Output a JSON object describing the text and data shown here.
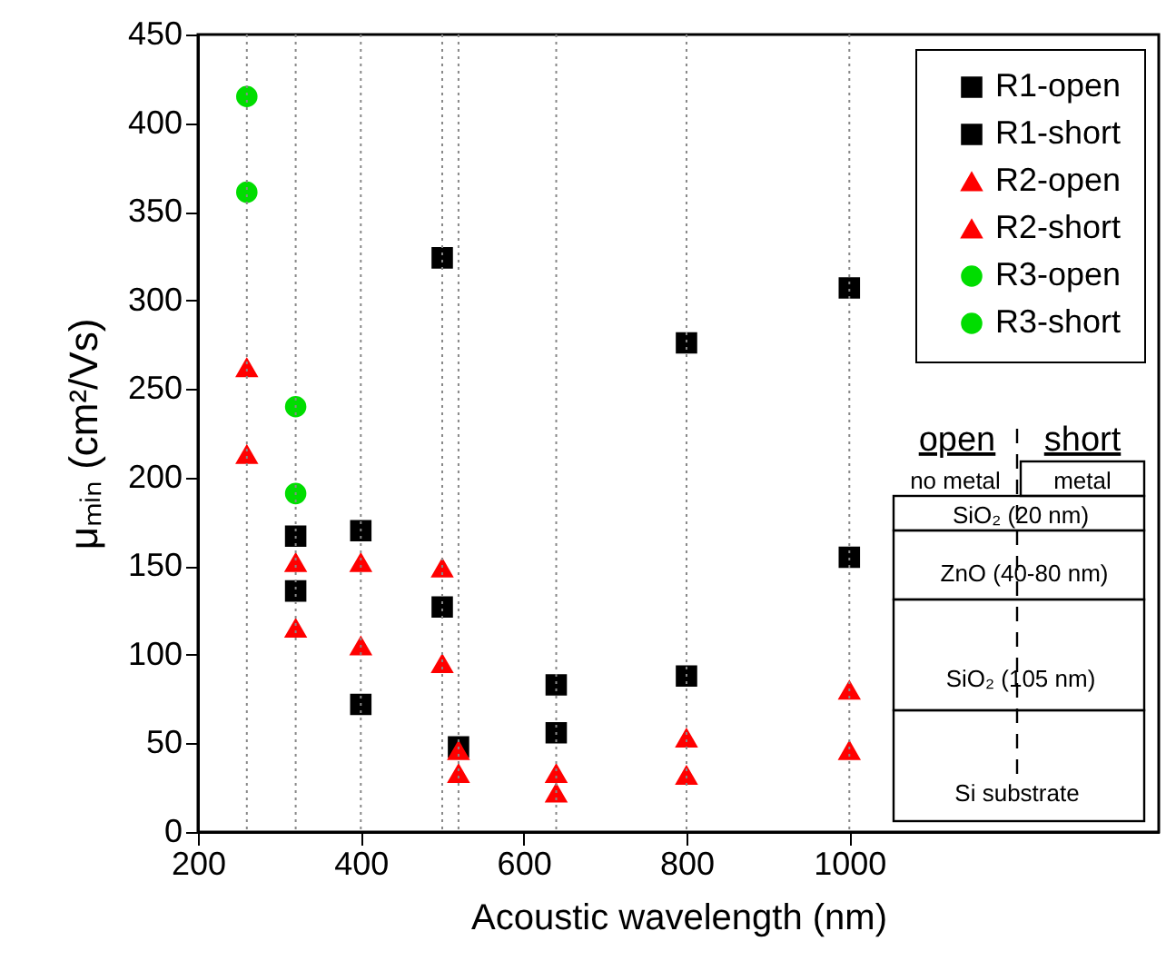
{
  "chart_data": {
    "type": "scatter",
    "xlabel": "Acoustic wavelength (nm)",
    "ylabel": "μₘᵢₙ (cm²/Vs)",
    "x": [
      260,
      320,
      400,
      500,
      520,
      640,
      800,
      1000
    ],
    "series": [
      {
        "name": "R1-open",
        "color": "#000000",
        "marker": "square",
        "values": [
          null,
          136,
          72,
          127,
          48,
          56,
          88,
          155
        ]
      },
      {
        "name": "R1-short",
        "color": "#000000",
        "marker": "square",
        "values": [
          null,
          167,
          170,
          324,
          null,
          83,
          276,
          307
        ]
      },
      {
        "name": "R2-open",
        "color": "#ff0000",
        "marker": "triangle",
        "values": [
          262,
          152,
          152,
          149,
          46,
          33,
          53,
          80
        ]
      },
      {
        "name": "R2-short",
        "color": "#ff0000",
        "marker": "triangle",
        "values": [
          213,
          115,
          105,
          95,
          33,
          22,
          32,
          46
        ]
      },
      {
        "name": "R3-open",
        "color": "#00dd00",
        "marker": "circle",
        "values": [
          415,
          240,
          null,
          null,
          null,
          null,
          null,
          null
        ]
      },
      {
        "name": "R3-short",
        "color": "#00dd00",
        "marker": "circle",
        "values": [
          361,
          191,
          null,
          null,
          null,
          null,
          null,
          null
        ]
      }
    ],
    "xlim": [
      200,
      1380
    ],
    "xticks": [
      200,
      400,
      600,
      800,
      1000
    ],
    "ylim": [
      0,
      450
    ],
    "yticks": [
      0,
      50,
      100,
      150,
      200,
      250,
      300,
      350,
      400,
      450
    ],
    "grid": false,
    "legend": "top right",
    "ref_lines": [
      {
        "axis": "x",
        "value": 260,
        "color": "#888888",
        "line_style": "dotted"
      },
      {
        "axis": "x",
        "value": 320,
        "color": "#888888",
        "line_style": "dotted"
      },
      {
        "axis": "x",
        "value": 400,
        "color": "#888888",
        "line_style": "dotted"
      },
      {
        "axis": "x",
        "value": 500,
        "color": "#888888",
        "line_style": "dotted"
      },
      {
        "axis": "x",
        "value": 520,
        "color": "#888888",
        "line_style": "dotted"
      },
      {
        "axis": "x",
        "value": 640,
        "color": "#888888",
        "line_style": "dotted"
      },
      {
        "axis": "x",
        "value": 800,
        "color": "#888888",
        "line_style": "dotted"
      },
      {
        "axis": "x",
        "value": 1000,
        "color": "#888888",
        "line_style": "dotted"
      }
    ],
    "annotations": [
      "open",
      "short",
      "no metal",
      "metal",
      "SiO₂ (20 nm)",
      "ZnO (40-80 nm)",
      "SiO₂ (105 nm)",
      "Si substrate"
    ]
  }
}
